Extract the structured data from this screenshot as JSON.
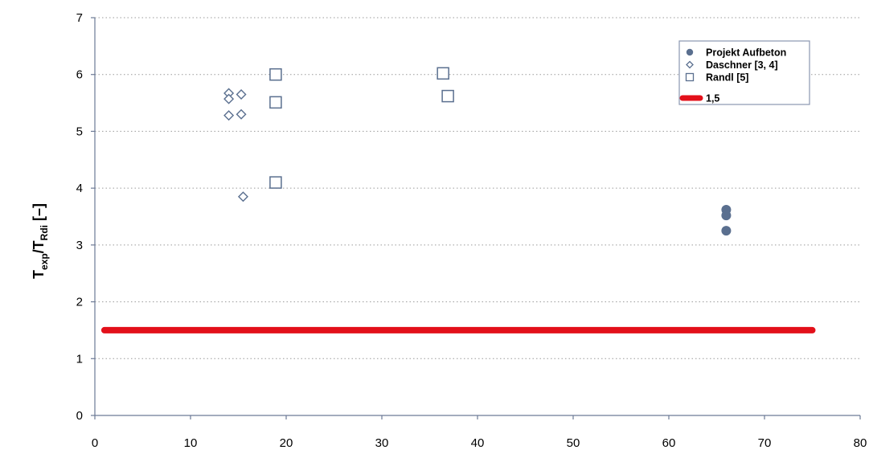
{
  "chart_data": {
    "type": "scatter",
    "title": "",
    "xlabel": "",
    "ylabel": {
      "main1": "T",
      "sub1": "exp",
      "sep": "/T",
      "sub2": "Rdi",
      "unit": " [–]"
    },
    "xlim": [
      0,
      80
    ],
    "ylim": [
      0,
      7
    ],
    "xticks": [
      "0",
      "10",
      "20",
      "30",
      "40",
      "50",
      "60",
      "70",
      "80"
    ],
    "yticks": [
      "0",
      "1",
      "2",
      "3",
      "4",
      "5",
      "6",
      "7"
    ],
    "grid": "horizontal dotted",
    "legend_position": "top-right",
    "colors": {
      "series": "#5a6f8f",
      "threshold": "#e3101a",
      "grid": "#9a9a9a"
    },
    "series": [
      {
        "name": "Projekt Aufbeton",
        "marker": "circle",
        "points": [
          [
            66,
            3.62
          ],
          [
            66,
            3.52
          ],
          [
            66,
            3.25
          ]
        ]
      },
      {
        "name": "Daschner [3, 4]",
        "marker": "diamond",
        "points": [
          [
            14,
            5.67
          ],
          [
            14,
            5.57
          ],
          [
            14,
            5.28
          ],
          [
            15.3,
            5.65
          ],
          [
            15.3,
            5.3
          ],
          [
            15.5,
            3.85
          ]
        ]
      },
      {
        "name": "Randl [5]",
        "marker": "square",
        "points": [
          [
            18.9,
            6.0
          ],
          [
            18.9,
            5.51
          ],
          [
            18.9,
            4.1
          ],
          [
            36.4,
            6.02
          ],
          [
            36.9,
            5.62
          ]
        ]
      },
      {
        "name": "1,5",
        "marker": "line",
        "points": [
          [
            1,
            1.5
          ],
          [
            75,
            1.5
          ]
        ]
      }
    ]
  }
}
